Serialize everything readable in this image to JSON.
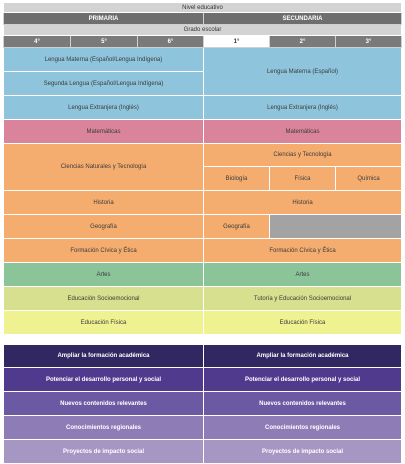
{
  "header": {
    "nivel": "Nivel educativo",
    "primaria": "PRIMARIA",
    "secundaria": "SECUNDARIA",
    "grado": "Grado escolar"
  },
  "grades": [
    "4°",
    "5°",
    "6°",
    "1°",
    "2°",
    "3°"
  ],
  "primaria": {
    "lengua_materna": "Lengua Materna (Español/Lengua Indígena)",
    "segunda_lengua": "Segunda Lengua (Español/Lengua Indígena)",
    "lengua_extranjera": "Lengua Extranjera (Inglés)",
    "matematicas": "Matemáticas",
    "ciencias": "Ciencias Naturales y Tecnología",
    "historia": "Historia",
    "geografia": "Geografía",
    "civica": "Formación Cívica y Ética",
    "artes": "Artes",
    "socioemocional": "Educación Socioemocional",
    "fisica": "Educación Física",
    "ampliar": "Ampliar la formación académica",
    "potenciar": "Potenciar el desarrollo personal y social",
    "nuevos": "Nuevos contenidos relevantes",
    "regionales": "Conocimientos regionales",
    "proyectos": "Proyectos de impacto social"
  },
  "secundaria": {
    "lengua_materna": "Lengua Materna (Español)",
    "lengua_extranjera": "Lengua Extranjera (Inglés)",
    "matematicas": "Matemáticas",
    "ciencias": "Ciencias y Tecnología",
    "biologia": "Biología",
    "fisica_ciencia": "Física",
    "quimica": "Química",
    "historia": "Historia",
    "geografia": "Geografía",
    "civica": "Formación Cívica y Ética",
    "artes": "Artes",
    "tutoria": "Tutoría y Educación Socioemocional",
    "fisica": "Educación Física",
    "ampliar": "Ampliar la formación académica",
    "potenciar": "Potenciar el desarrollo personal y social",
    "nuevos": "Nuevos contenidos relevantes",
    "regionales": "Conocimientos regionales",
    "proyectos": "Proyectos de impacto social"
  },
  "colors": {
    "blue": "#8ec5dd",
    "pink": "#d9849a",
    "orange": "#f5ad6f",
    "green": "#8cc49a",
    "lime": "#d6e08e",
    "yellow": "#eef291",
    "purple_dark": "#312861",
    "purple_light": "#a596c3"
  }
}
